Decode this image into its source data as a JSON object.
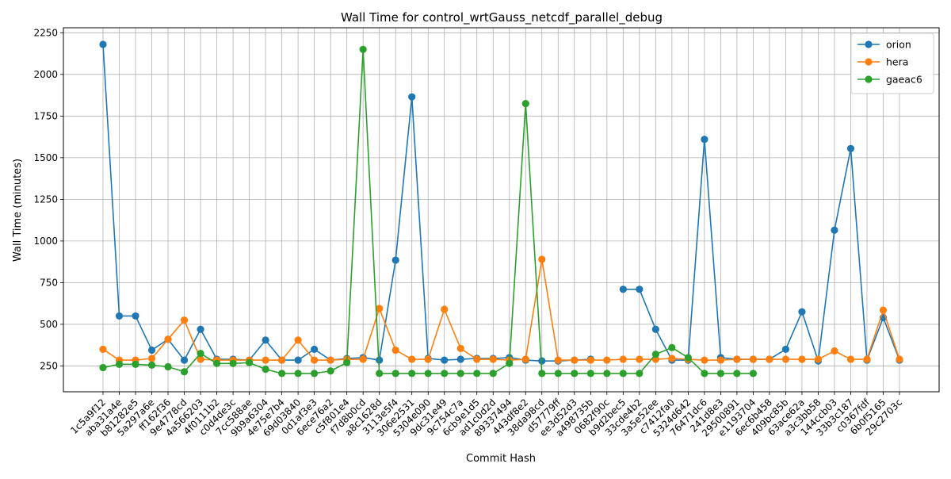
{
  "chart_data": {
    "type": "line",
    "title": "Wall Time for control_wrtGauss_netcdf_parallel_debug",
    "xlabel": "Commit Hash",
    "ylabel": "Wall Time (minutes)",
    "ylim": [
      95,
      2280
    ],
    "yticks": [
      250,
      500,
      750,
      1000,
      1250,
      1500,
      1750,
      2000,
      2250
    ],
    "grid": true,
    "legend_position": "top-right",
    "categories": [
      "1c5a9f12",
      "aba31a4e",
      "b81282e5",
      "5a297a6e",
      "ff162f36",
      "9e4778cd",
      "4a566203",
      "4f0111b2",
      "c0d4de3c",
      "7cc588ae",
      "9b9a6304",
      "4e75e7b4",
      "69d03840",
      "0d1af3e3",
      "6ece76a2",
      "c5f801e4",
      "f7d8b0cd",
      "a8c1628d",
      "3113e5f4",
      "306e2531",
      "5304e090",
      "9dc31e49",
      "9c754c7a",
      "6cb9e1d5",
      "ad1c0d2d",
      "89337494",
      "443df8e2",
      "38da98cd",
      "d57779ff",
      "ee3d52d3",
      "a498735b",
      "0682f90c",
      "b9d2bec5",
      "33cde4b2",
      "3a5e52ee",
      "c7412fa0",
      "5324d642",
      "76471dc6",
      "241d8e3",
      "29500891",
      "e1193704",
      "6ec6b458",
      "409bc85b",
      "63ace62a",
      "a3c3bb58",
      "144ccb03",
      "33b3c187",
      "c0367fdf",
      "6b0f5165",
      "29c2703c"
    ],
    "series": [
      {
        "name": "orion",
        "color": "#1f77b4",
        "values": [
          2180,
          550,
          550,
          345,
          410,
          285,
          470,
          290,
          290,
          285,
          405,
          285,
          285,
          350,
          285,
          295,
          300,
          285,
          885,
          1865,
          295,
          285,
          290,
          295,
          295,
          300,
          285,
          280,
          280,
          285,
          290,
          null,
          710,
          710,
          470,
          285,
          285,
          1610,
          300,
          290,
          290,
          290,
          350,
          575,
          280,
          1065,
          1555,
          285,
          540,
          285
        ]
      },
      {
        "name": "hera",
        "color": "#ff7f0e",
        "values": [
          350,
          285,
          285,
          295,
          410,
          525,
          290,
          285,
          285,
          285,
          285,
          285,
          405,
          285,
          285,
          290,
          290,
          595,
          345,
          290,
          290,
          590,
          355,
          290,
          290,
          285,
          290,
          890,
          285,
          285,
          285,
          285,
          290,
          290,
          290,
          295,
          290,
          285,
          285,
          290,
          290,
          290,
          290,
          290,
          290,
          340,
          290,
          290,
          585,
          290
        ]
      },
      {
        "name": "gaeac6",
        "color": "#2ca02c",
        "values": [
          240,
          260,
          260,
          255,
          245,
          215,
          325,
          265,
          265,
          270,
          230,
          205,
          205,
          205,
          220,
          270,
          2150,
          205,
          205,
          205,
          205,
          205,
          205,
          205,
          205,
          265,
          1825,
          205,
          205,
          205,
          205,
          205,
          205,
          205,
          320,
          360,
          300,
          205,
          205,
          205,
          205,
          null,
          null,
          null,
          null,
          null,
          null,
          null,
          null,
          null
        ]
      }
    ]
  }
}
